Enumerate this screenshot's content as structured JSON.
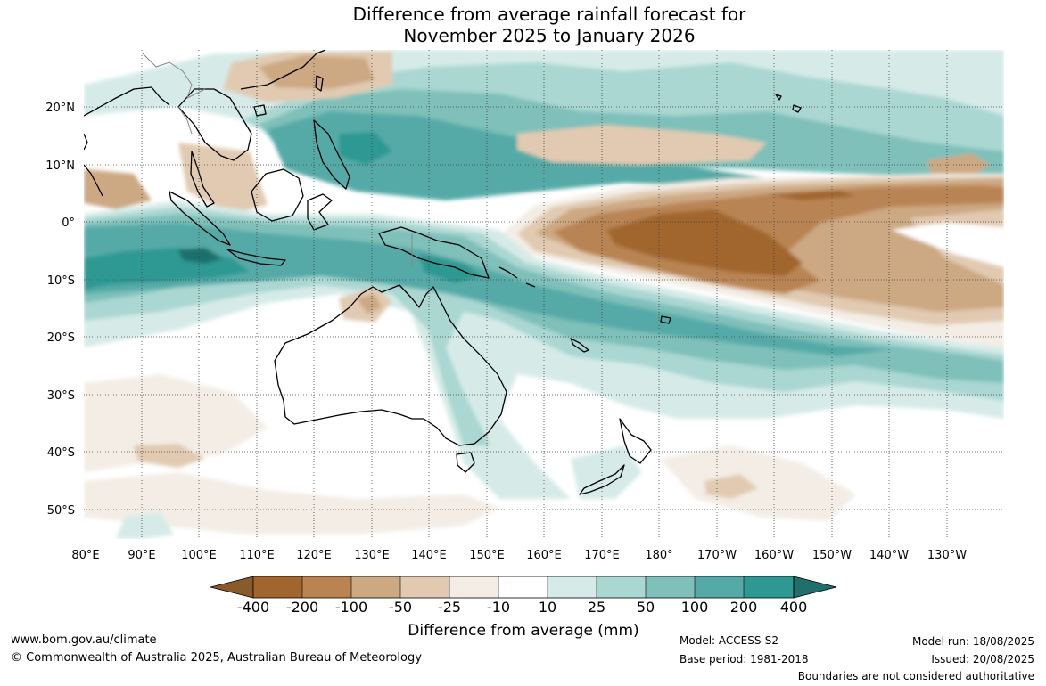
{
  "title": {
    "line1": "Difference from average rainfall forecast for",
    "line2": "November 2025 to January 2026"
  },
  "map": {
    "lat_labels": [
      "20°N",
      "10°N",
      "0°",
      "10°S",
      "20°S",
      "30°S",
      "40°S",
      "50°S"
    ],
    "lon_labels": [
      "80°E",
      "90°E",
      "100°E",
      "110°E",
      "120°E",
      "130°E",
      "140°E",
      "150°E",
      "160°E",
      "170°E",
      "180°",
      "170°W",
      "160°W",
      "150°W",
      "140°W",
      "130°W"
    ],
    "colors": {
      "dry_400": "#a0662e",
      "dry_200": "#b98452",
      "dry_100": "#cca883",
      "dry_50": "#e1cab1",
      "dry_25": "#f3ede6",
      "neutral": "#ffffff",
      "wet_25": "#d6ebe8",
      "wet_50": "#aad7d2",
      "wet_100": "#7fc0ba",
      "wet_200": "#55aaa7",
      "wet_400": "#2e9893",
      "wet_max": "#1f6f6c"
    }
  },
  "colorbar": {
    "tick_labels": [
      "-400",
      "-200",
      "-100",
      "-50",
      "-25",
      "-10",
      "10",
      "25",
      "50",
      "100",
      "200",
      "400"
    ],
    "title": "Difference from average (mm)"
  },
  "footer": {
    "website": "www.bom.gov.au/climate",
    "copyright": "© Commonwealth of Australia 2025, Australian Bureau of Meteorology",
    "model": "Model: ACCESS-S2",
    "base_period": "Base period: 1981-2018",
    "model_run": "Model run: 18/08/2025",
    "issued": "Issued: 20/08/2025",
    "disclaimer": "Boundaries are not considered authoritative"
  }
}
